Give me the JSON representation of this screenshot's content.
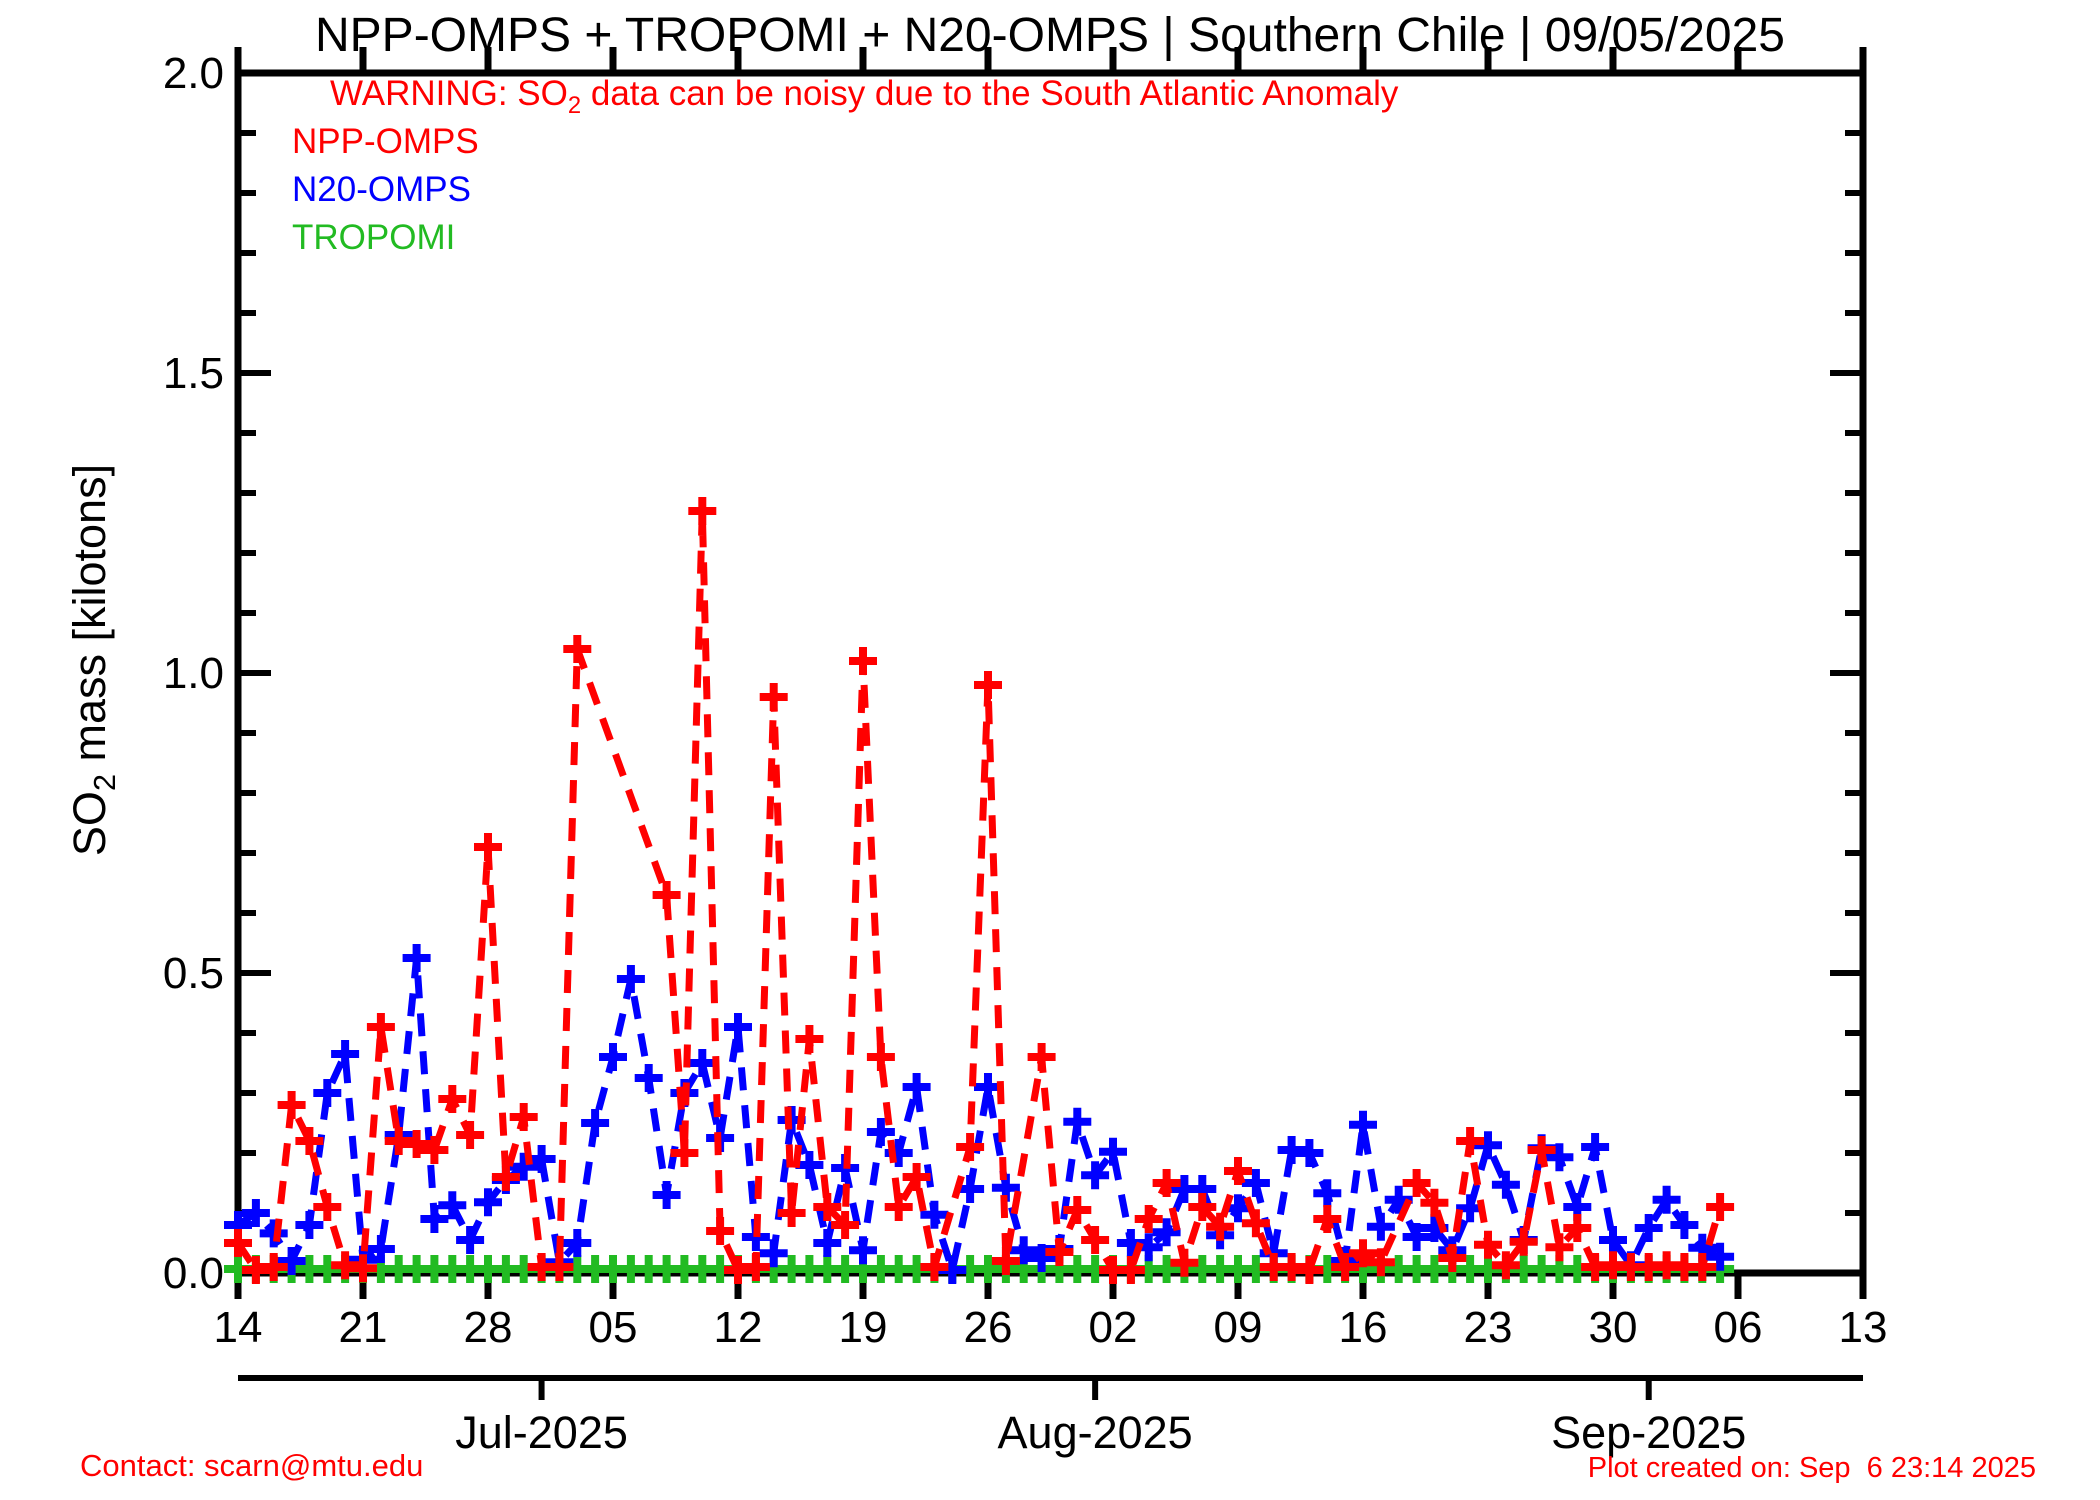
{
  "chart_data": {
    "type": "line",
    "title": "NPP-OMPS + TROPOMI + N20-OMPS | Southern Chile | 09/05/2025",
    "warning": {
      "pre": "WARNING: SO",
      "sub": "2",
      "post": " data can be noisy due to the South Atlantic Anomaly"
    },
    "ylabel": {
      "pre": "SO",
      "sub": "2",
      "post": " mass [kilotons]"
    },
    "ylabel_plain": "SO2 mass [kilotons]",
    "ylim": [
      0.0,
      2.0
    ],
    "ytick_major": 0.5,
    "ytick_minor": 0.1,
    "ytick_labels": [
      "0.0",
      "0.5",
      "1.0",
      "1.5",
      "2.0"
    ],
    "x_start_date": "2025-06-14",
    "x_unit": "day",
    "x_axis": {
      "week_ticks": [
        {
          "day": 0,
          "label": "14"
        },
        {
          "day": 7,
          "label": "21"
        },
        {
          "day": 14,
          "label": "28"
        },
        {
          "day": 21,
          "label": "05"
        },
        {
          "day": 28,
          "label": "12"
        },
        {
          "day": 35,
          "label": "19"
        },
        {
          "day": 42,
          "label": "26"
        },
        {
          "day": 49,
          "label": "02"
        },
        {
          "day": 56,
          "label": "09"
        },
        {
          "day": 63,
          "label": "16"
        },
        {
          "day": 70,
          "label": "23"
        },
        {
          "day": 77,
          "label": "30"
        },
        {
          "day": 84,
          "label": "06"
        },
        {
          "day": 91,
          "label": "13"
        }
      ],
      "month_ticks": [
        {
          "day": 17,
          "label": "Jul-2025"
        },
        {
          "day": 48,
          "label": "Aug-2025"
        },
        {
          "day": 79,
          "label": "Sep-2025"
        }
      ]
    },
    "grid": "off",
    "legend_position": "top-left-inside",
    "series": [
      {
        "name": "NPP-OMPS",
        "color": "#ff0000",
        "linestyle": "dashed",
        "marker": "plus",
        "points": [
          [
            0,
            0.05
          ],
          [
            1,
            0.005
          ],
          [
            2,
            0.01
          ],
          [
            3,
            0.28
          ],
          [
            4,
            0.22
          ],
          [
            5,
            0.11
          ],
          [
            6,
            0.013
          ],
          [
            7,
            0.008
          ],
          [
            8,
            0.41
          ],
          [
            9,
            0.22
          ],
          [
            10,
            0.215
          ],
          [
            11,
            0.205
          ],
          [
            12,
            0.29
          ],
          [
            13,
            0.23
          ],
          [
            14,
            0.71
          ],
          [
            15,
            0.16
          ],
          [
            16,
            0.26
          ],
          [
            17,
            0.01
          ],
          [
            18,
            0.01
          ],
          [
            19,
            1.04
          ],
          [
            24,
            0.63
          ],
          [
            25,
            0.2
          ],
          [
            26,
            1.27
          ],
          [
            27,
            0.07
          ],
          [
            28,
            0.005
          ],
          [
            29,
            0.01
          ],
          [
            30,
            0.96
          ],
          [
            31,
            0.1
          ],
          [
            32,
            0.39
          ],
          [
            33,
            0.11
          ],
          [
            34,
            0.08
          ],
          [
            35,
            1.02
          ],
          [
            36,
            0.36
          ],
          [
            37,
            0.11
          ],
          [
            38,
            0.16
          ],
          [
            39,
            0.01
          ],
          [
            41,
            0.21
          ],
          [
            42,
            0.98
          ],
          [
            43,
            0.02
          ],
          [
            45,
            0.36
          ],
          [
            46,
            0.035
          ],
          [
            47,
            0.105
          ],
          [
            48,
            0.055
          ],
          [
            49,
            0.005
          ],
          [
            50,
            0.005
          ],
          [
            51,
            0.09
          ],
          [
            52,
            0.15
          ],
          [
            53,
            0.017
          ],
          [
            54,
            0.11
          ],
          [
            55,
            0.077
          ],
          [
            56,
            0.17
          ],
          [
            57,
            0.083
          ],
          [
            58,
            0.01
          ],
          [
            59,
            0.01
          ],
          [
            60,
            0.005
          ],
          [
            61,
            0.09
          ],
          [
            62,
            0.01
          ],
          [
            63,
            0.033
          ],
          [
            64,
            0.018
          ],
          [
            66,
            0.15
          ],
          [
            67,
            0.117
          ],
          [
            68,
            0.025
          ],
          [
            69,
            0.22
          ],
          [
            70,
            0.047
          ],
          [
            71,
            0.013
          ],
          [
            72,
            0.052
          ],
          [
            73,
            0.205
          ],
          [
            74,
            0.043
          ],
          [
            75,
            0.075
          ],
          [
            76,
            0.01
          ],
          [
            77,
            0.013
          ],
          [
            78,
            0.01
          ],
          [
            79,
            0.01
          ],
          [
            80,
            0.013
          ],
          [
            81,
            0.01
          ],
          [
            82,
            0.01
          ],
          [
            83,
            0.11
          ]
        ]
      },
      {
        "name": "N20-OMPS",
        "color": "#0000ff",
        "linestyle": "dashed",
        "marker": "plus",
        "points": [
          [
            0,
            0.08
          ],
          [
            1,
            0.1
          ],
          [
            2,
            0.066
          ],
          [
            3,
            0.02
          ],
          [
            4,
            0.08
          ],
          [
            5,
            0.3
          ],
          [
            6,
            0.365
          ],
          [
            7,
            0.022
          ],
          [
            8,
            0.04
          ],
          [
            9,
            0.23
          ],
          [
            10,
            0.525
          ],
          [
            11,
            0.09
          ],
          [
            12,
            0.113
          ],
          [
            13,
            0.055
          ],
          [
            14,
            0.118
          ],
          [
            15,
            0.155
          ],
          [
            16,
            0.177
          ],
          [
            17,
            0.19
          ],
          [
            18,
            0.018
          ],
          [
            19,
            0.05
          ],
          [
            20,
            0.25
          ],
          [
            21,
            0.36
          ],
          [
            22,
            0.49
          ],
          [
            23,
            0.325
          ],
          [
            24,
            0.13
          ],
          [
            25,
            0.3
          ],
          [
            26,
            0.35
          ],
          [
            27,
            0.225
          ],
          [
            28,
            0.41
          ],
          [
            29,
            0.06
          ],
          [
            30,
            0.033
          ],
          [
            31,
            0.255
          ],
          [
            32,
            0.18
          ],
          [
            33,
            0.05
          ],
          [
            34,
            0.175
          ],
          [
            35,
            0.038
          ],
          [
            36,
            0.235
          ],
          [
            37,
            0.2
          ],
          [
            38,
            0.31
          ],
          [
            39,
            0.097
          ],
          [
            40,
            0.005
          ],
          [
            41,
            0.14
          ],
          [
            42,
            0.31
          ],
          [
            43,
            0.142
          ],
          [
            44,
            0.038
          ],
          [
            45,
            0.025
          ],
          [
            46,
            0.04
          ],
          [
            47,
            0.252
          ],
          [
            48,
            0.163
          ],
          [
            49,
            0.202
          ],
          [
            50,
            0.05
          ],
          [
            51,
            0.043
          ],
          [
            52,
            0.068
          ],
          [
            53,
            0.14
          ],
          [
            54,
            0.14
          ],
          [
            55,
            0.063
          ],
          [
            56,
            0.108
          ],
          [
            57,
            0.15
          ],
          [
            58,
            0.033
          ],
          [
            59,
            0.205
          ],
          [
            60,
            0.2
          ],
          [
            61,
            0.133
          ],
          [
            62,
            0.02
          ],
          [
            63,
            0.247
          ],
          [
            64,
            0.077
          ],
          [
            65,
            0.122
          ],
          [
            66,
            0.06
          ],
          [
            67,
            0.075
          ],
          [
            68,
            0.038
          ],
          [
            69,
            0.108
          ],
          [
            70,
            0.213
          ],
          [
            71,
            0.147
          ],
          [
            72,
            0.055
          ],
          [
            73,
            0.208
          ],
          [
            74,
            0.193
          ],
          [
            75,
            0.11
          ],
          [
            76,
            0.21
          ],
          [
            77,
            0.055
          ],
          [
            78,
            0.013
          ],
          [
            79,
            0.075
          ],
          [
            80,
            0.122
          ],
          [
            81,
            0.08
          ],
          [
            82,
            0.042
          ],
          [
            83,
            0.027
          ]
        ]
      },
      {
        "name": "TROPOMI",
        "color": "#22bb22",
        "linestyle": "solid",
        "marker": "plus",
        "day_range": [
          0,
          83
        ],
        "value": 0.0
      }
    ],
    "colors": {
      "warning": "#ff0000",
      "footer": "#ff0000",
      "axis": "#000000"
    }
  },
  "footer": {
    "contact": "Contact: scarn@mtu.edu",
    "created": "Plot created on: Sep  6 23:14 2025"
  }
}
